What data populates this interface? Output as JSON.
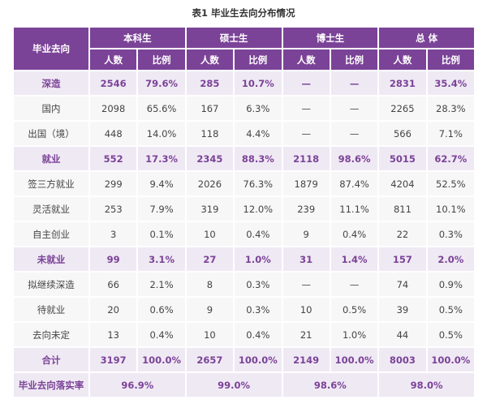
{
  "title": "表1  毕业生去向分布情况",
  "header": {
    "first": "毕业去向",
    "groups": [
      "本科生",
      "硕士生",
      "博士生",
      "总  体"
    ],
    "sub": [
      "人数",
      "比例"
    ]
  },
  "colors": {
    "header_bg": "#7b4397",
    "category_bg": "#efe9f4",
    "category_text": "#7b4397",
    "row_bg": "#f7f7f7"
  },
  "rows": [
    {
      "type": "cat",
      "label": "深造",
      "cells": [
        "2546",
        "79.6%",
        "285",
        "10.7%",
        "—",
        "—",
        "2831",
        "35.4%"
      ]
    },
    {
      "type": "item",
      "label": "国内",
      "cells": [
        "2098",
        "65.6%",
        "167",
        "6.3%",
        "—",
        "—",
        "2265",
        "28.3%"
      ]
    },
    {
      "type": "item",
      "label": "出国（境）",
      "cells": [
        "448",
        "14.0%",
        "118",
        "4.4%",
        "—",
        "—",
        "566",
        "7.1%"
      ]
    },
    {
      "type": "cat",
      "label": "就业",
      "cells": [
        "552",
        "17.3%",
        "2345",
        "88.3%",
        "2118",
        "98.6%",
        "5015",
        "62.7%"
      ]
    },
    {
      "type": "item",
      "label": "签三方就业",
      "cells": [
        "299",
        "9.4%",
        "2026",
        "76.3%",
        "1879",
        "87.4%",
        "4204",
        "52.5%"
      ]
    },
    {
      "type": "item",
      "label": "灵活就业",
      "cells": [
        "253",
        "7.9%",
        "319",
        "12.0%",
        "239",
        "11.1%",
        "811",
        "10.1%"
      ]
    },
    {
      "type": "item",
      "label": "自主创业",
      "cells": [
        "3",
        "0.1%",
        "10",
        "0.4%",
        "9",
        "0.4%",
        "22",
        "0.3%"
      ]
    },
    {
      "type": "cat",
      "label": "未就业",
      "cells": [
        "99",
        "3.1%",
        "27",
        "1.0%",
        "31",
        "1.4%",
        "157",
        "2.0%"
      ]
    },
    {
      "type": "item",
      "label": "拟继续深造",
      "cells": [
        "66",
        "2.1%",
        "8",
        "0.3%",
        "—",
        "—",
        "74",
        "0.9%"
      ]
    },
    {
      "type": "item",
      "label": "待就业",
      "cells": [
        "20",
        "0.6%",
        "9",
        "0.3%",
        "10",
        "0.5%",
        "39",
        "0.5%"
      ]
    },
    {
      "type": "item",
      "label": "去向未定",
      "cells": [
        "13",
        "0.4%",
        "10",
        "0.4%",
        "21",
        "1.0%",
        "44",
        "0.5%"
      ]
    },
    {
      "type": "cat",
      "label": "合计",
      "cells": [
        "3197",
        "100.0%",
        "2657",
        "100.0%",
        "2149",
        "100.0%",
        "8003",
        "100.0%"
      ]
    }
  ],
  "rate_row": {
    "label": "毕业去向落实率",
    "cells": [
      "96.9%",
      "99.0%",
      "98.6%",
      "98.0%"
    ]
  }
}
